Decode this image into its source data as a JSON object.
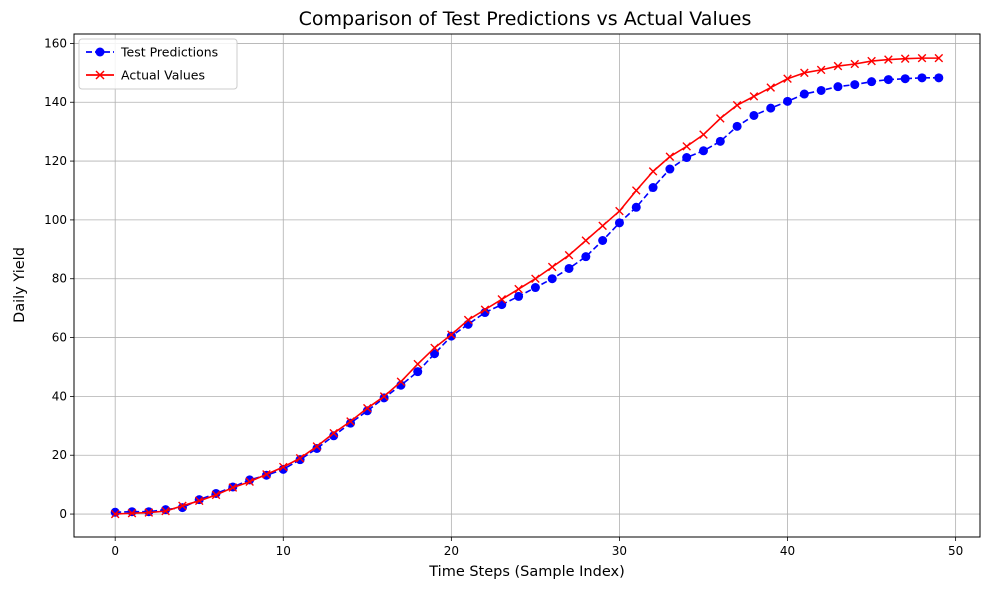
{
  "chart_data": {
    "type": "line",
    "title": "Comparison of Test Predictions vs Actual Values",
    "xlabel": "Time Steps (Sample Index)",
    "ylabel": "Daily Yield",
    "xlim": [
      -2.45,
      51.45
    ],
    "ylim": [
      -7.8,
      163.2
    ],
    "xticks": [
      0,
      10,
      20,
      30,
      40,
      50
    ],
    "yticks": [
      0,
      20,
      40,
      60,
      80,
      100,
      120,
      140,
      160
    ],
    "grid": true,
    "legend_position": "top-left",
    "x": [
      0,
      1,
      2,
      3,
      4,
      5,
      6,
      7,
      8,
      9,
      10,
      11,
      12,
      13,
      14,
      15,
      16,
      17,
      18,
      19,
      20,
      21,
      22,
      23,
      24,
      25,
      26,
      27,
      28,
      29,
      30,
      31,
      32,
      33,
      34,
      35,
      36,
      37,
      38,
      39,
      40,
      41,
      42,
      43,
      44,
      45,
      46,
      47,
      48,
      49
    ],
    "series": [
      {
        "name": "Test Predictions",
        "color": "#0000ff",
        "linestyle": "dashed",
        "marker": "circle",
        "values": [
          0.6,
          0.8,
          0.8,
          1.5,
          2.2,
          4.9,
          7.0,
          9.2,
          11.6,
          13.2,
          15.2,
          18.5,
          22.3,
          26.6,
          30.9,
          35.1,
          39.5,
          43.8,
          48.4,
          54.5,
          60.5,
          64.5,
          68.5,
          71.2,
          74.0,
          77.0,
          80.0,
          83.5,
          87.5,
          93.0,
          99.0,
          104.3,
          111.0,
          117.3,
          121.2,
          123.5,
          126.7,
          131.8,
          135.5,
          138.0,
          140.3,
          142.8,
          144.0,
          145.3,
          146.0,
          147.0,
          147.7,
          148.0,
          148.3,
          148.3
        ]
      },
      {
        "name": "Actual Values",
        "color": "#ff0000",
        "linestyle": "solid",
        "marker": "x",
        "values": [
          0.0,
          0.3,
          0.5,
          1.0,
          2.8,
          4.5,
          6.5,
          9.0,
          11.0,
          13.5,
          16.0,
          19.0,
          23.0,
          27.5,
          31.5,
          36.0,
          40.0,
          45.0,
          51.0,
          56.5,
          61.0,
          66.0,
          69.5,
          73.0,
          76.5,
          80.0,
          84.0,
          88.0,
          93.0,
          98.0,
          103.0,
          110.0,
          116.5,
          121.5,
          125.0,
          129.0,
          134.5,
          139.0,
          142.0,
          145.0,
          148.0,
          150.0,
          151.0,
          152.3,
          153.0,
          154.0,
          154.5,
          154.8,
          155.0,
          155.0
        ]
      }
    ]
  }
}
